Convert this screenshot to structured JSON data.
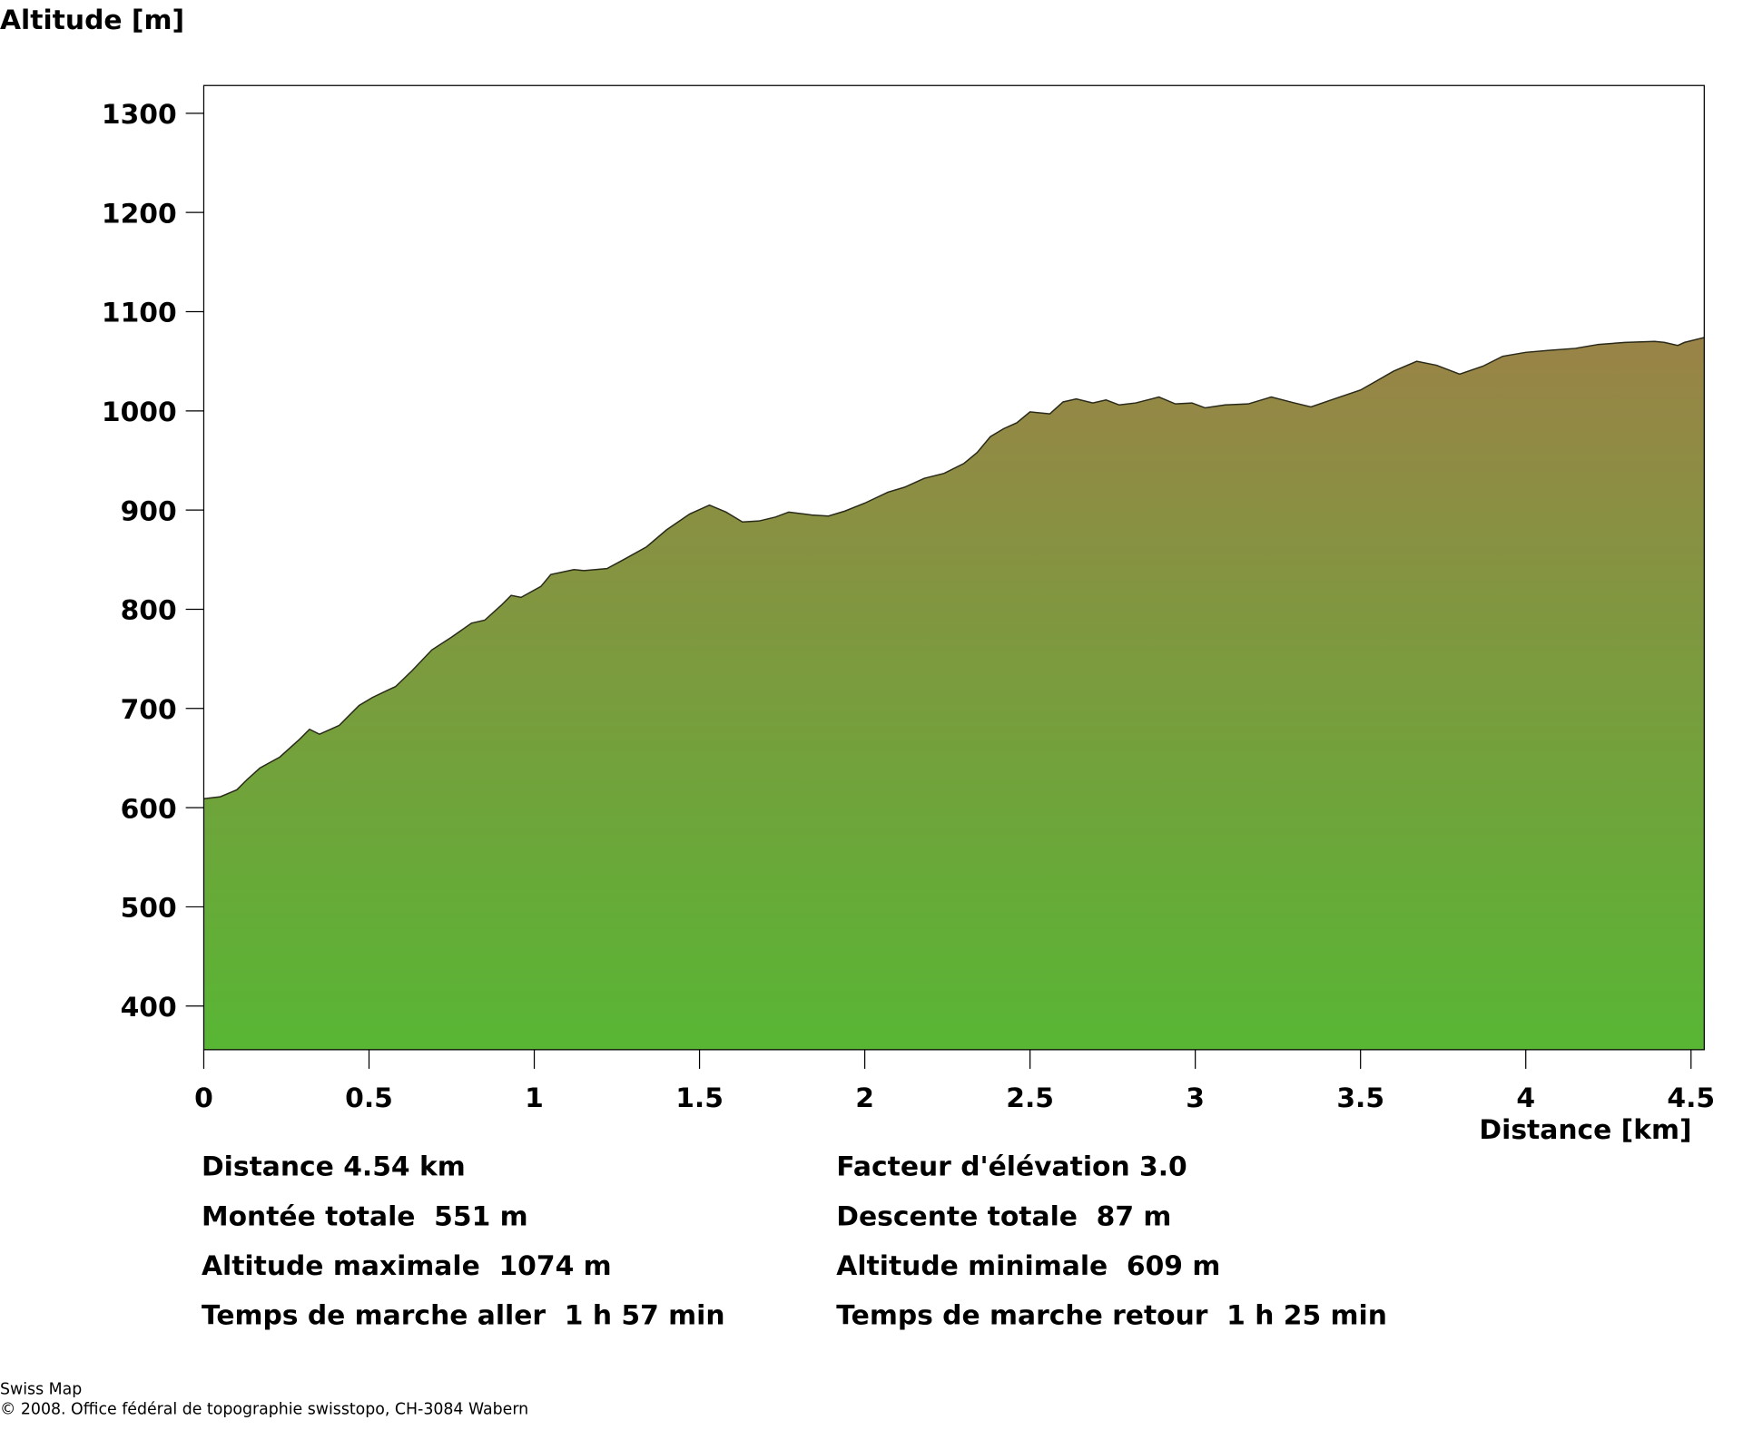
{
  "chart_data": {
    "type": "area",
    "y_label": "Altitude [m]",
    "x_label": "Distance [km]",
    "x": [
      0,
      0.05,
      0.1,
      0.13,
      0.17,
      0.23,
      0.29,
      0.32,
      0.35,
      0.39,
      0.41,
      0.47,
      0.51,
      0.56,
      0.58,
      0.63,
      0.69,
      0.75,
      0.81,
      0.85,
      0.9,
      0.93,
      0.96,
      1.02,
      1.05,
      1.12,
      1.15,
      1.22,
      1.27,
      1.34,
      1.4,
      1.47,
      1.53,
      1.58,
      1.63,
      1.68,
      1.73,
      1.77,
      1.84,
      1.89,
      1.94,
      2.0,
      2.07,
      2.12,
      2.18,
      2.24,
      2.3,
      2.34,
      2.38,
      2.42,
      2.46,
      2.5,
      2.56,
      2.6,
      2.64,
      2.69,
      2.73,
      2.77,
      2.82,
      2.89,
      2.94,
      2.99,
      3.03,
      3.09,
      3.16,
      3.23,
      3.3,
      3.35,
      3.42,
      3.5,
      3.6,
      3.67,
      3.73,
      3.8,
      3.87,
      3.93,
      4.0,
      4.07,
      4.15,
      4.22,
      4.3,
      4.39,
      4.42,
      4.46,
      4.48,
      4.54
    ],
    "y": [
      609,
      611,
      618,
      628,
      640,
      651,
      669,
      679,
      674,
      680,
      683,
      703,
      711,
      719,
      722,
      738,
      759,
      772,
      786,
      789,
      804,
      814,
      812,
      823,
      835,
      840,
      839,
      841,
      850,
      863,
      880,
      896,
      905,
      898,
      888,
      889,
      893,
      898,
      895,
      894,
      899,
      907,
      918,
      923,
      932,
      937,
      947,
      958,
      974,
      982,
      988,
      999,
      997,
      1009,
      1012,
      1008,
      1011,
      1006,
      1008,
      1014,
      1007,
      1008,
      1003,
      1006,
      1007,
      1014,
      1008,
      1004,
      1012,
      1021,
      1040,
      1050,
      1046,
      1037,
      1045,
      1055,
      1059,
      1061,
      1063,
      1067,
      1069,
      1070,
      1069,
      1066,
      1069,
      1074
    ],
    "color_top": "#9a8347",
    "color_bottom": "#58b634",
    "line_color": "#2a2a1a",
    "xlim": [
      0,
      4.54
    ],
    "ylim": [
      356,
      1328
    ],
    "xticks": [
      0,
      0.5,
      1,
      1.5,
      2,
      2.5,
      3,
      3.5,
      4,
      4.5
    ],
    "yticks": [
      400,
      500,
      600,
      700,
      800,
      900,
      1000,
      1100,
      1200,
      1300
    ],
    "stats_left": [
      "Distance 4.54 km",
      "Montée totale  551 m",
      "Altitude maximale  1074 m",
      "Temps de marche aller  1 h 57 min"
    ],
    "stats_right": [
      "Facteur d'élévation 3.0",
      "Descente totale  87 m",
      "Altitude minimale  609 m",
      "Temps de marche retour  1 h 25 min"
    ],
    "footer": [
      "Swiss Map",
      "© 2008. Office fédéral de topographie swisstopo, CH-3084 Wabern"
    ]
  }
}
